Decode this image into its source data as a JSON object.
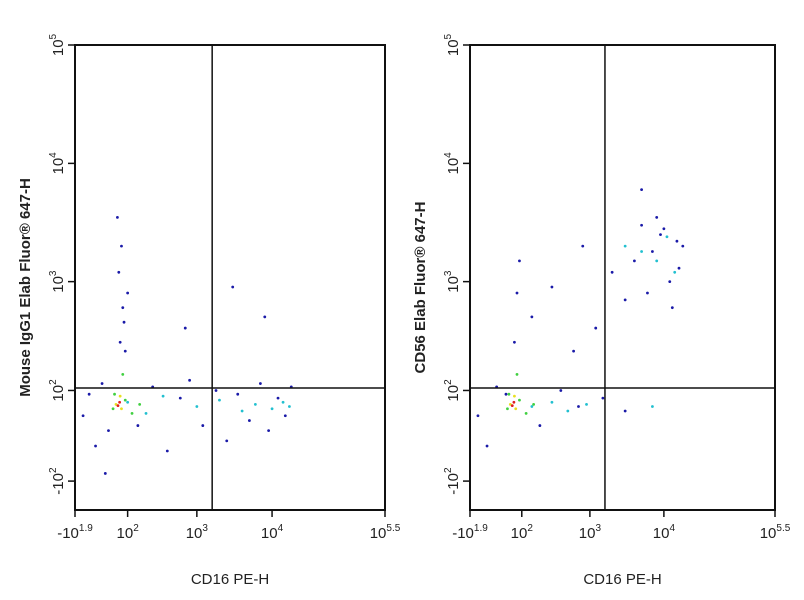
{
  "chart_data": [
    {
      "type": "scatter",
      "xlabel": "CD16 PE-H",
      "ylabel": "Mouse IgG1 Elab Fluor® 647-H",
      "xscale": "biexponential",
      "yscale": "biexponential",
      "xlim": [
        -79.43,
        316228
      ],
      "ylim": [
        -200,
        100000
      ],
      "xticks": [
        {
          "value": -79.43,
          "label": "-10",
          "exponent": "1.9"
        },
        {
          "value": 100,
          "label": "10",
          "exponent": "2"
        },
        {
          "value": 1000,
          "label": "10",
          "exponent": "3"
        },
        {
          "value": 10000,
          "label": "10",
          "exponent": "4"
        },
        {
          "value": 316228,
          "label": "10",
          "exponent": "5.5"
        }
      ],
      "yticks": [
        {
          "value": -100,
          "label": "-10",
          "exponent": "2"
        },
        {
          "value": 100,
          "label": "10",
          "exponent": "2"
        },
        {
          "value": 1000,
          "label": "10",
          "exponent": "3"
        },
        {
          "value": 10000,
          "label": "10",
          "exponent": "4"
        },
        {
          "value": 100000,
          "label": "10",
          "exponent": "5"
        }
      ],
      "gates": {
        "x": 1600,
        "y": 107
      },
      "series": [
        {
          "color": "#1a1aa8",
          "x": [
            -50,
            -30,
            -10,
            10,
            30,
            150,
            250,
            400,
            600,
            800,
            1200,
            1800,
            2500,
            3500,
            5000,
            7000,
            9000,
            12000,
            15000,
            18000,
            70,
            80,
            65,
            75,
            85,
            90,
            60,
            100,
            3000,
            20,
            700,
            8000
          ],
          "y": [
            40,
            90,
            -20,
            120,
            10,
            20,
            110,
            -30,
            80,
            130,
            20,
            100,
            -10,
            90,
            30,
            120,
            10,
            80,
            40,
            110,
            300,
            600,
            1200,
            2000,
            450,
            250,
            3500,
            800,
            900,
            -80,
            400,
            500
          ]
        },
        {
          "color": "#22c0d0",
          "x": [
            100,
            200,
            350,
            1000,
            2000,
            4000,
            6000,
            10000,
            14000,
            17000
          ],
          "y": [
            70,
            45,
            85,
            60,
            75,
            50,
            65,
            55,
            70,
            60
          ]
        },
        {
          "color": "#40d040",
          "x": [
            45,
            90,
            120,
            160,
            80,
            50
          ],
          "y": [
            55,
            75,
            45,
            65,
            150,
            90
          ]
        },
        {
          "color": "#e8e020",
          "x": [
            55,
            75,
            70
          ],
          "y": [
            65,
            55,
            85
          ]
        },
        {
          "color": "#e02020",
          "x": [
            62,
            68
          ],
          "y": [
            62,
            70
          ]
        }
      ]
    },
    {
      "type": "scatter",
      "xlabel": "CD16 PE-H",
      "ylabel": "CD56 Elab Fluor® 647-H",
      "xscale": "biexponential",
      "yscale": "biexponential",
      "xlim": [
        -79.43,
        316228
      ],
      "ylim": [
        -200,
        100000
      ],
      "xticks": [
        {
          "value": -79.43,
          "label": "-10",
          "exponent": "1.9"
        },
        {
          "value": 100,
          "label": "10",
          "exponent": "2"
        },
        {
          "value": 1000,
          "label": "10",
          "exponent": "3"
        },
        {
          "value": 10000,
          "label": "10",
          "exponent": "4"
        },
        {
          "value": 316228,
          "label": "10",
          "exponent": "5.5"
        }
      ],
      "yticks": [
        {
          "value": -100,
          "label": "-10",
          "exponent": "2"
        },
        {
          "value": 100,
          "label": "10",
          "exponent": "2"
        },
        {
          "value": 1000,
          "label": "10",
          "exponent": "3"
        },
        {
          "value": 10000,
          "label": "10",
          "exponent": "4"
        },
        {
          "value": 100000,
          "label": "10",
          "exponent": "5"
        }
      ],
      "gates": {
        "x": 1600,
        "y": 107
      },
      "series": [
        {
          "color": "#1a1aa8",
          "x": [
            -50,
            -20,
            10,
            40,
            200,
            400,
            700,
            1500,
            3000,
            150,
            300,
            800,
            1200,
            2000,
            3000,
            5000,
            7000,
            9000,
            12000,
            15000,
            4000,
            6000,
            8000,
            10000,
            13000,
            16000,
            18000,
            70,
            80,
            90,
            5000,
            600
          ],
          "y": [
            40,
            -20,
            110,
            90,
            20,
            100,
            60,
            80,
            50,
            500,
            900,
            2000,
            400,
            1200,
            700,
            3000,
            1800,
            2500,
            1000,
            2200,
            1500,
            800,
            3500,
            2800,
            600,
            1300,
            2000,
            300,
            800,
            1500,
            6000,
            250
          ]
        },
        {
          "color": "#22c0d0",
          "x": [
            150,
            300,
            500,
            900,
            5000,
            8000,
            11000,
            14000,
            3000,
            7000
          ],
          "y": [
            60,
            70,
            50,
            65,
            1800,
            1500,
            2400,
            1200,
            2000,
            60
          ]
        },
        {
          "color": "#40d040",
          "x": [
            45,
            90,
            120,
            160,
            80,
            50
          ],
          "y": [
            55,
            75,
            45,
            65,
            150,
            90
          ]
        },
        {
          "color": "#e8e020",
          "x": [
            55,
            75,
            70
          ],
          "y": [
            65,
            55,
            85
          ]
        },
        {
          "color": "#e02020",
          "x": [
            62,
            68
          ],
          "y": [
            62,
            70
          ]
        }
      ]
    }
  ]
}
